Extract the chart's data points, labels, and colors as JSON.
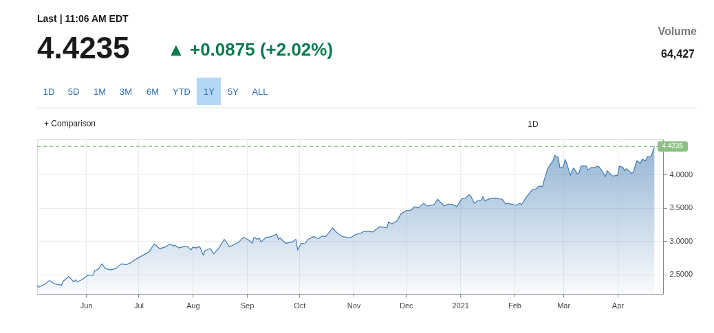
{
  "chart_data": {
    "type": "area",
    "annotations": [
      "Last | 11:06 AM EDT",
      "4.4235",
      "▲ +0.0875 (+2.02%)",
      "Volume",
      "64,427",
      "1D",
      "5D",
      "1M",
      "3M",
      "6M",
      "YTD",
      "1Y",
      "5Y",
      "ALL",
      "+ Comparison",
      "1D"
    ],
    "x": [
      "2020-05-04",
      "2020-05-05",
      "2020-05-08",
      "2020-05-11",
      "2020-05-14",
      "2020-05-18",
      "2020-05-19",
      "2020-05-22",
      "2020-05-25",
      "2020-05-26",
      "2020-05-27",
      "2020-05-30",
      "2020-06-02",
      "2020-06-05",
      "2020-06-06",
      "2020-06-08",
      "2020-06-10",
      "2020-06-12",
      "2020-06-15",
      "2020-06-18",
      "2020-06-21",
      "2020-06-24",
      "2020-06-26",
      "2020-06-30",
      "2020-07-07",
      "2020-07-10",
      "2020-07-13",
      "2020-07-16",
      "2020-07-19",
      "2020-07-21",
      "2020-07-22",
      "2020-07-24",
      "2020-07-27",
      "2020-07-29",
      "2020-07-31",
      "2020-08-01",
      "2020-08-03",
      "2020-08-05",
      "2020-08-07",
      "2020-08-08",
      "2020-08-11",
      "2020-08-13",
      "2020-08-16",
      "2020-08-19",
      "2020-08-22",
      "2020-08-24",
      "2020-08-27",
      "2020-08-30",
      "2020-09-02",
      "2020-09-04",
      "2020-09-05",
      "2020-09-07",
      "2020-09-08",
      "2020-09-09",
      "2020-09-12",
      "2020-09-15",
      "2020-09-18",
      "2020-09-19",
      "2020-09-20",
      "2020-09-23",
      "2020-09-27",
      "2020-09-29",
      "2020-09-30",
      "2020-10-02",
      "2020-10-04",
      "2020-10-06",
      "2020-10-09",
      "2020-10-12",
      "2020-10-14",
      "2020-10-16",
      "2020-10-20",
      "2020-10-22",
      "2020-10-25",
      "2020-10-26",
      "2020-10-30",
      "2020-11-02",
      "2020-11-05",
      "2020-11-07",
      "2020-11-09",
      "2020-11-12",
      "2020-11-16",
      "2020-11-20",
      "2020-11-21",
      "2020-11-23",
      "2020-11-26",
      "2020-11-28",
      "2020-12-01",
      "2020-12-04",
      "2020-12-06",
      "2020-12-08",
      "2020-12-11",
      "2020-12-13",
      "2020-12-17",
      "2020-12-19",
      "2020-12-23",
      "2020-12-25",
      "2020-12-28",
      "2020-12-30",
      "2021-01-02",
      "2021-01-04",
      "2021-01-06",
      "2021-01-07",
      "2021-01-09",
      "2021-01-11",
      "2021-01-13",
      "2021-01-14",
      "2021-01-15",
      "2021-01-18",
      "2021-01-21",
      "2021-01-25",
      "2021-01-27",
      "2021-01-28",
      "2021-02-02",
      "2021-02-04",
      "2021-02-05",
      "2021-02-08",
      "2021-02-11",
      "2021-02-13",
      "2021-02-15",
      "2021-02-17",
      "2021-02-18",
      "2021-02-20",
      "2021-02-22",
      "2021-02-23",
      "2021-02-24",
      "2021-02-26",
      "2021-02-27",
      "2021-03-01",
      "2021-03-02",
      "2021-03-03",
      "2021-03-05",
      "2021-03-06",
      "2021-03-07",
      "2021-03-09",
      "2021-03-10",
      "2021-03-11",
      "2021-03-14",
      "2021-03-15",
      "2021-03-17",
      "2021-03-19",
      "2021-03-21",
      "2021-03-23",
      "2021-03-25",
      "2021-03-26",
      "2021-03-29",
      "2021-04-01",
      "2021-04-02",
      "2021-04-04",
      "2021-04-05",
      "2021-04-06",
      "2021-04-09",
      "2021-04-10",
      "2021-04-12",
      "2021-04-14",
      "2021-04-15",
      "2021-04-17",
      "2021-04-18",
      "2021-04-20",
      "2021-04-21",
      "2021-04-22"
    ],
    "series": [
      {
        "color": "#3f7ab3",
        "values": [
          2.34,
          2.31,
          2.35,
          2.41,
          2.36,
          2.34,
          2.4,
          2.47,
          2.39,
          2.42,
          2.39,
          2.43,
          2.49,
          2.49,
          2.56,
          2.58,
          2.66,
          2.59,
          2.57,
          2.59,
          2.66,
          2.65,
          2.67,
          2.74,
          2.84,
          2.96,
          2.89,
          2.91,
          2.96,
          2.93,
          2.94,
          2.9,
          2.92,
          2.92,
          2.87,
          2.91,
          2.9,
          2.92,
          2.79,
          2.86,
          2.89,
          2.81,
          2.9,
          3.03,
          2.92,
          2.94,
          2.98,
          3.06,
          3.02,
          2.97,
          3.06,
          3.03,
          3.05,
          2.99,
          3.06,
          3.07,
          3.11,
          3.03,
          3.05,
          2.97,
          2.99,
          3.03,
          2.87,
          2.97,
          2.96,
          3.03,
          3.07,
          3.04,
          3.08,
          3.07,
          3.2,
          3.14,
          3.08,
          3.07,
          3.05,
          3.1,
          3.12,
          3.15,
          3.15,
          3.14,
          3.22,
          3.2,
          3.29,
          3.26,
          3.31,
          3.41,
          3.46,
          3.47,
          3.52,
          3.5,
          3.57,
          3.53,
          3.55,
          3.63,
          3.53,
          3.56,
          3.55,
          3.52,
          3.64,
          3.65,
          3.7,
          3.68,
          3.57,
          3.61,
          3.62,
          3.67,
          3.61,
          3.64,
          3.65,
          3.63,
          3.56,
          3.57,
          3.54,
          3.57,
          3.55,
          3.67,
          3.77,
          3.78,
          3.83,
          3.82,
          3.92,
          4.09,
          4.17,
          4.21,
          4.29,
          4.26,
          4.1,
          4.12,
          4.23,
          4.16,
          3.99,
          4.07,
          4.1,
          4.01,
          4.03,
          4.13,
          4.13,
          4.07,
          4.11,
          4.11,
          4.13,
          4.06,
          3.97,
          4.06,
          3.98,
          3.99,
          4.13,
          4.11,
          4.06,
          4.09,
          4.02,
          4.04,
          4.21,
          4.17,
          4.23,
          4.21,
          4.27,
          4.27,
          4.34,
          4.4235
        ]
      }
    ],
    "xlim": [
      "2020-05-04",
      "2021-04-27"
    ],
    "xticks": [
      {
        "value": "2020-06-01",
        "label": "Jun"
      },
      {
        "value": "2020-07-01",
        "label": "Jul"
      },
      {
        "value": "2020-08-01",
        "label": "Aug"
      },
      {
        "value": "2020-09-01",
        "label": "Sep"
      },
      {
        "value": "2020-10-01",
        "label": "Oct"
      },
      {
        "value": "2020-11-01",
        "label": "Nov"
      },
      {
        "value": "2020-12-01",
        "label": "Dec"
      },
      {
        "value": "2021-01-01",
        "label": "2021"
      },
      {
        "value": "2021-02-01",
        "label": "Feb"
      },
      {
        "value": "2021-03-01",
        "label": "Mar"
      },
      {
        "value": "2021-04-01",
        "label": "Apr"
      }
    ],
    "ylim": [
      2.21,
      4.53
    ],
    "yticks": [
      {
        "value": 2.5,
        "label": "2.5000"
      },
      {
        "value": 3.0,
        "label": "3.0000"
      },
      {
        "value": 3.5,
        "label": "3.5000"
      },
      {
        "value": 4.0,
        "label": "4.0000"
      }
    ],
    "ref_lines": [
      {
        "axis": "y",
        "value": 4.4235,
        "label": "4.4235",
        "color": "#8cc084",
        "line_style": "dashed"
      }
    ],
    "grid": true
  }
}
